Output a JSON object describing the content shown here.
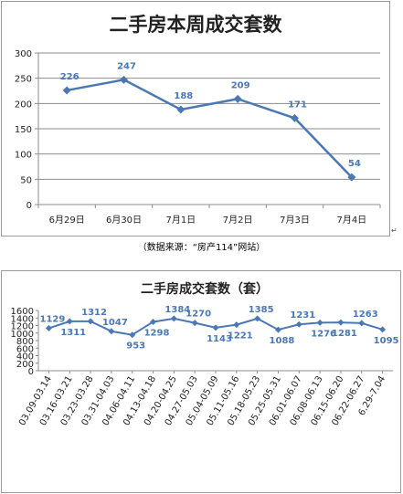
{
  "chart_data": [
    {
      "type": "line",
      "title": "二手房本周成交套数",
      "categories": [
        "6月29日",
        "6月30日",
        "7月1日",
        "7月2日",
        "7月3日",
        "7月4日"
      ],
      "series": [
        {
          "values": [
            226,
            247,
            188,
            209,
            171,
            54
          ]
        }
      ],
      "ylim": [
        0,
        300
      ],
      "yticks": [
        0,
        50,
        100,
        150,
        200,
        250,
        300
      ],
      "grid": true,
      "color": "#4a78b5"
    },
    {
      "type": "line",
      "title": "二手房成交套数（套）",
      "categories": [
        "03.09-03.14",
        "03.16-03.21",
        "03.23-03.28",
        "03.31-04.03",
        "04.06-04.11",
        "04.13-04.18",
        "04.20-04.25",
        "04.27-05.03",
        "05.04-05.09",
        "05.11-05.16",
        "05.18-05.23",
        "05.25-05.31",
        "06.01-06.07",
        "06.08-06.13",
        "06.15-06.20",
        "06.22-06.27",
        "6.29-7.04"
      ],
      "series": [
        {
          "values": [
            1129,
            1311,
            1312,
            1047,
            953,
            1298,
            1384,
            1270,
            1143,
            1221,
            1385,
            1088,
            1231,
            1276,
            1281,
            1263,
            1095
          ]
        }
      ],
      "ylim": [
        0,
        1600
      ],
      "yticks": [
        0,
        200,
        400,
        600,
        800,
        1000,
        1200,
        1400,
        1600
      ],
      "grid": false,
      "color": "#4a78b5"
    }
  ],
  "source_note": "（数据来源：“房产114”网站）",
  "cursor_mark": "↵"
}
